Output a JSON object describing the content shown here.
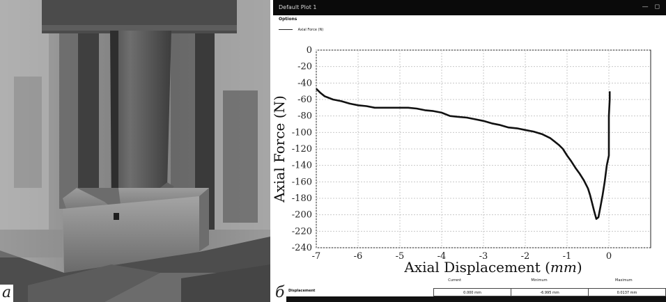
{
  "photo": {
    "panel_letter": "a"
  },
  "screen": {
    "panel_letter": "б",
    "window_title": "Default Plot 1",
    "window_buttons": "— ◻",
    "options_label": "Options",
    "legend_label": "Axial Force (N)",
    "bottom": {
      "displacement_label": "Displacement",
      "readout_headers": [
        "Current",
        "Minimum",
        "Maximum"
      ],
      "readout_values": [
        "0.000 mm",
        "-6.995 mm",
        "0.0137 mm"
      ]
    }
  },
  "chart_data": {
    "type": "line",
    "title": "",
    "xlabel": "Axial Displacement (mm)",
    "xlabel_prefix": "Axial Displacement (",
    "xlabel_unit": "mm",
    "xlabel_suffix": ")",
    "ylabel": "Axial Force (N)",
    "xlim": [
      -7,
      1
    ],
    "ylim": [
      -240,
      0
    ],
    "x_ticks": [
      -7,
      -6,
      -5,
      -4,
      -3,
      -2,
      -1,
      0
    ],
    "y_ticks": [
      0,
      -20,
      -40,
      -60,
      -80,
      -100,
      -120,
      -140,
      -160,
      -180,
      -200,
      -220,
      -240
    ],
    "grid": true,
    "series": [
      {
        "name": "Axial Force (N)",
        "x": [
          -7.0,
          -6.9,
          -6.8,
          -6.6,
          -6.4,
          -6.2,
          -6.0,
          -5.8,
          -5.6,
          -5.4,
          -5.2,
          -5.0,
          -4.8,
          -4.6,
          -4.4,
          -4.2,
          -4.0,
          -3.8,
          -3.6,
          -3.4,
          -3.2,
          -3.0,
          -2.8,
          -2.6,
          -2.4,
          -2.2,
          -2.0,
          -1.8,
          -1.6,
          -1.4,
          -1.3,
          -1.2,
          -1.1,
          -1.0,
          -0.9,
          -0.8,
          -0.7,
          -0.6,
          -0.5,
          -0.45,
          -0.4,
          -0.35,
          -0.3,
          -0.25,
          -0.2,
          -0.15,
          -0.1,
          -0.05,
          0.0,
          0.0,
          0.02,
          0.02
        ],
        "y": [
          -47,
          -52,
          -56,
          -60,
          -62,
          -65,
          -67,
          -68,
          -70,
          -70,
          -70,
          -70,
          -70,
          -71,
          -73,
          -74,
          -76,
          -80,
          -81,
          -82,
          -84,
          -86,
          -89,
          -91,
          -94,
          -95,
          -97,
          -99,
          -102,
          -107,
          -111,
          -115,
          -120,
          -128,
          -135,
          -143,
          -150,
          -158,
          -168,
          -176,
          -186,
          -196,
          -205,
          -203,
          -190,
          -176,
          -160,
          -140,
          -128,
          -80,
          -60,
          -50
        ]
      }
    ]
  }
}
